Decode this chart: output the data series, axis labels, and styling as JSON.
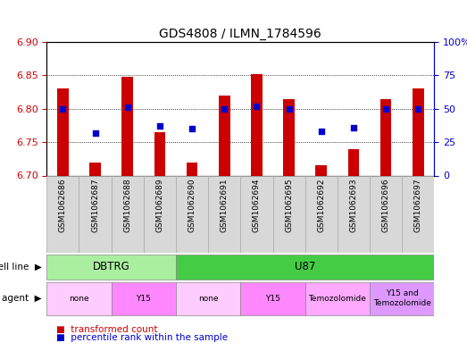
{
  "title": "GDS4808 / ILMN_1784596",
  "samples": [
    "GSM1062686",
    "GSM1062687",
    "GSM1062688",
    "GSM1062689",
    "GSM1062690",
    "GSM1062691",
    "GSM1062694",
    "GSM1062695",
    "GSM1062692",
    "GSM1062693",
    "GSM1062696",
    "GSM1062697"
  ],
  "transformed_count": [
    6.83,
    6.72,
    6.848,
    6.765,
    6.72,
    6.82,
    6.852,
    6.815,
    6.715,
    6.74,
    6.815,
    6.83
  ],
  "percentile_rank": [
    50,
    32,
    51,
    37,
    35,
    50,
    52,
    50,
    33,
    36,
    50,
    50
  ],
  "ylim_left": [
    6.7,
    6.9
  ],
  "ylim_right": [
    0,
    100
  ],
  "yticks_left": [
    6.7,
    6.75,
    6.8,
    6.85,
    6.9
  ],
  "yticks_right": [
    0,
    25,
    50,
    75,
    100
  ],
  "bar_color": "#cc0000",
  "dot_color": "#0000cc",
  "cell_line_groups": [
    {
      "label": "DBTRG",
      "start": 0,
      "end": 3,
      "color": "#aaeea0"
    },
    {
      "label": "U87",
      "start": 4,
      "end": 11,
      "color": "#44cc44"
    }
  ],
  "agent_groups": [
    {
      "label": "none",
      "start": 0,
      "end": 1,
      "color": "#ffccff"
    },
    {
      "label": "Y15",
      "start": 2,
      "end": 3,
      "color": "#ff88ff"
    },
    {
      "label": "none",
      "start": 4,
      "end": 5,
      "color": "#ffccff"
    },
    {
      "label": "Y15",
      "start": 6,
      "end": 7,
      "color": "#ff88ff"
    },
    {
      "label": "Temozolomide",
      "start": 8,
      "end": 9,
      "color": "#ffaaff"
    },
    {
      "label": "Y15 and\nTemozolomide",
      "start": 10,
      "end": 11,
      "color": "#dd99ff"
    }
  ],
  "base_value": 6.7,
  "bar_width": 0.35
}
